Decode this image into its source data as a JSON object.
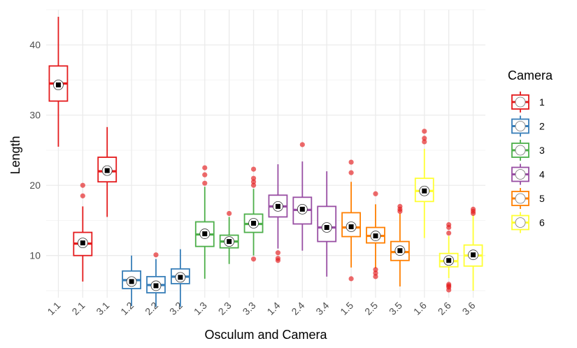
{
  "chart_data": {
    "type": "boxplot",
    "xlabel": "Osculum and Camera",
    "ylabel": "Length",
    "ylim": [
      4,
      45
    ],
    "yticks": [
      10,
      20,
      30,
      40
    ],
    "grid": true,
    "legend": {
      "title": "Camera",
      "position": "right",
      "entries": [
        {
          "label": "1",
          "color": "#E41A1C"
        },
        {
          "label": "2",
          "color": "#377EB8"
        },
        {
          "label": "3",
          "color": "#4DAF4A"
        },
        {
          "label": "4",
          "color": "#984EA3"
        },
        {
          "label": "5",
          "color": "#FF7F00"
        },
        {
          "label": "6",
          "color": "#FFFF33"
        }
      ]
    },
    "categories": [
      "1.1",
      "2.1",
      "3.1",
      "1.2",
      "2.2",
      "3.2",
      "1.3",
      "2.3",
      "3.3",
      "1.4",
      "2.4",
      "3.4",
      "1.5",
      "2.5",
      "3.5",
      "1.6",
      "2.6",
      "3.6"
    ],
    "boxes": [
      {
        "category": "1.1",
        "camera": "1",
        "min": 25.5,
        "q1": 32,
        "median": 34.5,
        "q3": 37,
        "max": 44,
        "mean": 34.3,
        "outliers": []
      },
      {
        "category": "2.1",
        "camera": "1",
        "min": 6.3,
        "q1": 10,
        "median": 11.7,
        "q3": 13.3,
        "max": 17,
        "mean": 11.8,
        "outliers": [
          18.5,
          20
        ]
      },
      {
        "category": "3.1",
        "camera": "1",
        "min": 15.5,
        "q1": 20.5,
        "median": 22,
        "q3": 24,
        "max": 28.3,
        "mean": 22.1,
        "outliers": []
      },
      {
        "category": "1.2",
        "camera": "2",
        "min": 2.8,
        "q1": 5.3,
        "median": 6.5,
        "q3": 7.8,
        "max": 10,
        "mean": 6.3,
        "outliers": []
      },
      {
        "category": "2.2",
        "camera": "2",
        "min": 2.7,
        "q1": 4.7,
        "median": 5.8,
        "q3": 7,
        "max": 9.5,
        "mean": 5.7,
        "outliers": [
          10.1
        ]
      },
      {
        "category": "3.2",
        "camera": "2",
        "min": 2.7,
        "q1": 6,
        "median": 7,
        "q3": 8.1,
        "max": 10.9,
        "mean": 6.9,
        "outliers": []
      },
      {
        "category": "1.3",
        "camera": "3",
        "min": 6.7,
        "q1": 11.3,
        "median": 13,
        "q3": 14.8,
        "max": 19.8,
        "mean": 13.1,
        "outliers": [
          20.3,
          21.5,
          22.5
        ]
      },
      {
        "category": "2.3",
        "camera": "3",
        "min": 8.8,
        "q1": 11.1,
        "median": 12,
        "q3": 12.9,
        "max": 15.5,
        "mean": 12,
        "outliers": [
          16
        ]
      },
      {
        "category": "3.3",
        "camera": "3",
        "min": 10,
        "q1": 13.3,
        "median": 14.5,
        "q3": 15.9,
        "max": 19.5,
        "mean": 14.6,
        "outliers": [
          9.5,
          20,
          20.5,
          21,
          22.3
        ]
      },
      {
        "category": "1.4",
        "camera": "4",
        "min": 11,
        "q1": 15.5,
        "median": 17,
        "q3": 18.6,
        "max": 23,
        "mean": 17,
        "outliers": [
          9.3,
          9.6,
          10.4
        ]
      },
      {
        "category": "2.4",
        "camera": "4",
        "min": 10.7,
        "q1": 14.5,
        "median": 16.5,
        "q3": 18.3,
        "max": 23.4,
        "mean": 16.6,
        "outliers": [
          25.8
        ]
      },
      {
        "category": "3.4",
        "camera": "4",
        "min": 7,
        "q1": 12,
        "median": 14,
        "q3": 17,
        "max": 22,
        "mean": 14,
        "outliers": []
      },
      {
        "category": "1.5",
        "camera": "5",
        "min": 8.3,
        "q1": 12.7,
        "median": 14,
        "q3": 16.1,
        "max": 20.5,
        "mean": 14.1,
        "outliers": [
          6.7,
          21.8,
          23.3
        ]
      },
      {
        "category": "2.5",
        "camera": "5",
        "min": 8.2,
        "q1": 11.8,
        "median": 12.8,
        "q3": 14,
        "max": 17.3,
        "mean": 12.8,
        "outliers": [
          7,
          7.5,
          8,
          18.8
        ]
      },
      {
        "category": "3.5",
        "camera": "5",
        "min": 5.6,
        "q1": 9.3,
        "median": 10.5,
        "q3": 12,
        "max": 16,
        "mean": 10.7,
        "outliers": [
          16.3,
          16.6,
          17
        ]
      },
      {
        "category": "1.6",
        "camera": "6",
        "min": 12.5,
        "q1": 17.7,
        "median": 19.2,
        "q3": 21,
        "max": 25.2,
        "mean": 19.2,
        "outliers": [
          26.2,
          26.7,
          27.7
        ]
      },
      {
        "category": "2.6",
        "camera": "6",
        "min": 6.8,
        "q1": 8.4,
        "median": 9.2,
        "q3": 10.3,
        "max": 12.8,
        "mean": 9.3,
        "outliers": [
          5.1,
          5.5,
          5.7,
          5.9,
          13.2,
          14,
          14.4
        ]
      },
      {
        "category": "3.6",
        "camera": "6",
        "min": 5,
        "q1": 8.5,
        "median": 10,
        "q3": 11.5,
        "max": 15.8,
        "mean": 10.1,
        "outliers": [
          16,
          16.3,
          16.6
        ]
      }
    ]
  }
}
